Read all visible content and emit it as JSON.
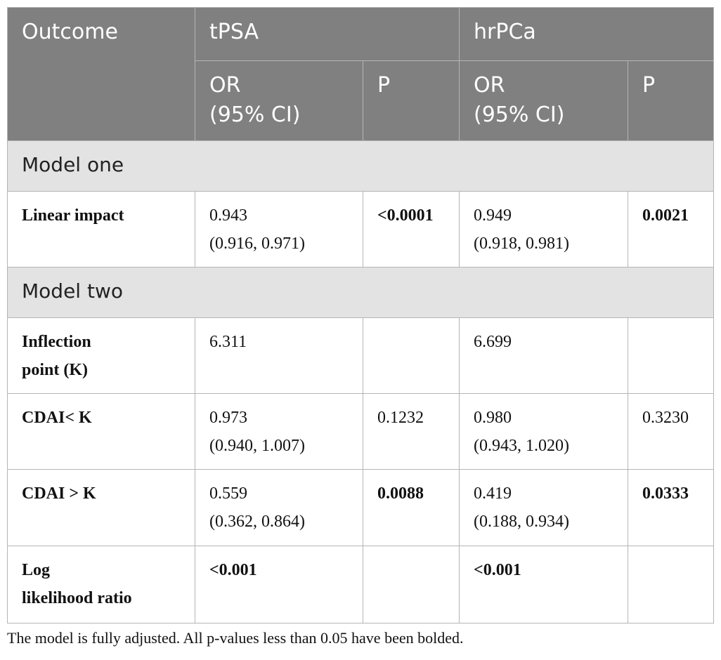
{
  "table": {
    "header": {
      "outcome": "Outcome",
      "groups": [
        "tPSA",
        "hrPCa"
      ],
      "subheaders": [
        [
          "OR",
          "(95% CI)"
        ],
        [
          "P"
        ],
        [
          "OR",
          "(95% CI)"
        ],
        [
          "P"
        ]
      ]
    },
    "sections": [
      {
        "title": "Model one",
        "rows": [
          {
            "label": [
              "Linear impact"
            ],
            "cells": [
              [
                "0.943",
                "(0.916, 0.971)"
              ],
              [
                "<0.0001"
              ],
              [
                "0.949",
                "(0.918, 0.981)"
              ],
              [
                "0.0021"
              ]
            ],
            "bold": [
              false,
              true,
              false,
              true
            ]
          }
        ]
      },
      {
        "title": "Model two",
        "rows": [
          {
            "label": [
              "Inflection",
              "point (K)"
            ],
            "cells": [
              [
                "6.311"
              ],
              null,
              [
                "6.699"
              ],
              null
            ],
            "bold": [
              false,
              false,
              false,
              false
            ]
          },
          {
            "label": [
              "CDAI< K"
            ],
            "cells": [
              [
                "0.973",
                "(0.940, 1.007)"
              ],
              [
                "0.1232"
              ],
              [
                "0.980",
                "(0.943, 1.020)"
              ],
              [
                "0.3230"
              ]
            ],
            "bold": [
              false,
              false,
              false,
              false
            ]
          },
          {
            "label": [
              "CDAI > K"
            ],
            "cells": [
              [
                "0.559",
                "(0.362, 0.864)"
              ],
              [
                "0.0088"
              ],
              [
                "0.419",
                "(0.188, 0.934)"
              ],
              [
                "0.0333"
              ]
            ],
            "bold": [
              false,
              true,
              false,
              true
            ]
          },
          {
            "label": [
              "Log",
              "likelihood ratio"
            ],
            "cells": [
              [
                "<0.001"
              ],
              null,
              [
                "<0.001"
              ],
              null
            ],
            "bold": [
              true,
              false,
              true,
              false
            ]
          }
        ]
      }
    ],
    "footnote": "The model is fully adjusted. All p-values less than 0.05 have been bolded."
  }
}
